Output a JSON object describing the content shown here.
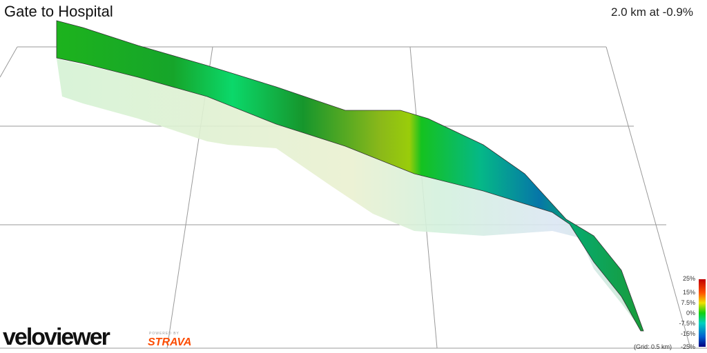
{
  "header": {
    "title": "Gate to Hospital",
    "summary": "2.0 km at -0.9%"
  },
  "legend": {
    "labels": [
      "25%",
      "15%",
      "7.5%",
      "0%",
      "-7.5%",
      "-15%",
      "-25%"
    ],
    "grid_note": "(Grid: 0.5 km)"
  },
  "branding": {
    "logo": "veloviewer",
    "powered_by": "POWERED BY",
    "partner": "STRAVA"
  }
}
